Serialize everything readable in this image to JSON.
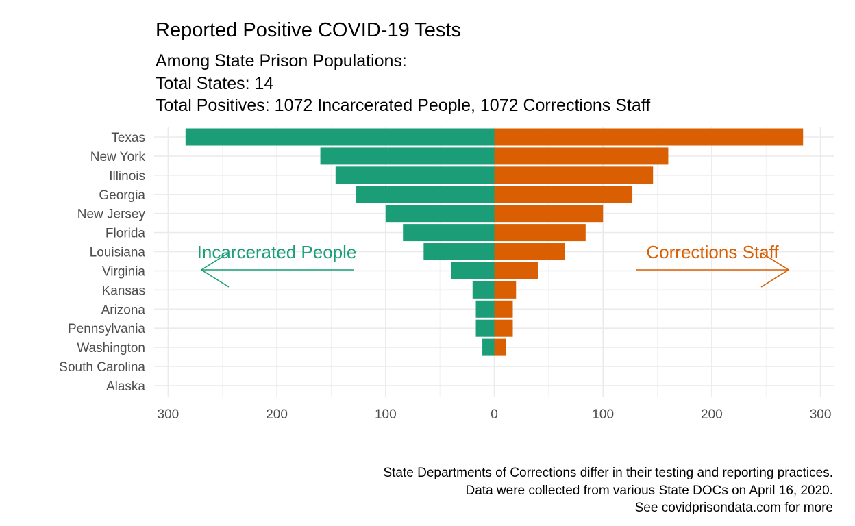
{
  "chart_data": {
    "type": "bar",
    "orientation": "horizontal-diverging",
    "title": "Reported Positive COVID-19 Tests",
    "subtitle_lines": [
      "Among State Prison Populations:",
      "Total States: 14",
      "Total Positives: 1072 Incarcerated People, 1072 Corrections Staff"
    ],
    "categories": [
      "Texas",
      "New York",
      "Illinois",
      "Georgia",
      "New Jersey",
      "Florida",
      "Louisiana",
      "Virginia",
      "Kansas",
      "Arizona",
      "Pennsylvania",
      "Washington",
      "South Carolina",
      "Alaska"
    ],
    "series": [
      {
        "name": "Incarcerated People",
        "color": "#1b9e77",
        "direction": "left",
        "values": [
          284,
          160,
          146,
          127,
          100,
          84,
          65,
          40,
          20,
          17,
          17,
          11,
          0,
          0
        ]
      },
      {
        "name": "Corrections Staff",
        "color": "#d95f02",
        "direction": "right",
        "values": [
          284,
          160,
          146,
          127,
          100,
          84,
          65,
          40,
          20,
          17,
          17,
          11,
          0,
          0
        ]
      }
    ],
    "xlim": [
      -300,
      300
    ],
    "x_ticks": [
      -300,
      -200,
      -100,
      0,
      100,
      200,
      300
    ],
    "x_tick_labels": [
      "300",
      "200",
      "100",
      "0",
      "100",
      "200",
      "300"
    ],
    "grid": true,
    "caption_lines": [
      "State Departments of Corrections differ in their testing and reporting practices.",
      "Data were collected from various State DOCs on April 16, 2020.",
      "See covidprisondata.com for more"
    ]
  }
}
